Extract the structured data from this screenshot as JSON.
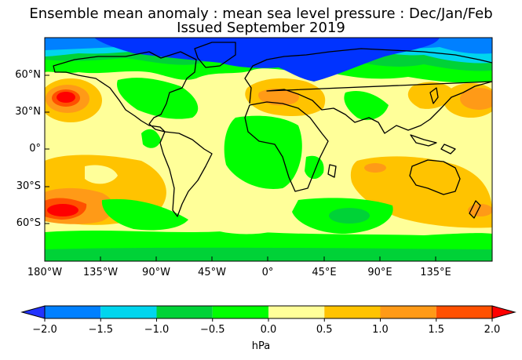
{
  "title": {
    "line1": "Ensemble mean anomaly : mean sea level pressure : Dec/Jan/Feb",
    "line2": "Issued September 2019"
  },
  "map": {
    "projection": "equirectangular",
    "lat_ticks": [
      "60°N",
      "30°N",
      "0°",
      "30°S",
      "60°S"
    ],
    "lon_ticks": [
      "180°W",
      "135°W",
      "90°W",
      "45°W",
      "0°",
      "45°E",
      "90°E",
      "135°E"
    ],
    "coastlines": true,
    "country_borders": true
  },
  "colorbar": {
    "unit_label": "hPa",
    "ticks": [
      "−2.0",
      "−1.5",
      "−1.0",
      "−0.5",
      "0.0",
      "0.5",
      "1.0",
      "1.5",
      "2.0"
    ],
    "extend": "both",
    "colors": {
      "below_min": "#2233ff",
      "-2.0_to_-1.5": "#0080ff",
      "-1.5_to_-1.0": "#00d5ee",
      "-1.0_to_-0.5": "#00d237",
      "-0.5_to_0.0": "#00ff00",
      "0.0_to_0.5": "#ffff99",
      "0.5_to_1.0": "#ffc300",
      "1.0_to_1.5": "#ff9a17",
      "1.5_to_2.0": "#ff5000",
      "above_max": "#ff0000"
    }
  }
}
